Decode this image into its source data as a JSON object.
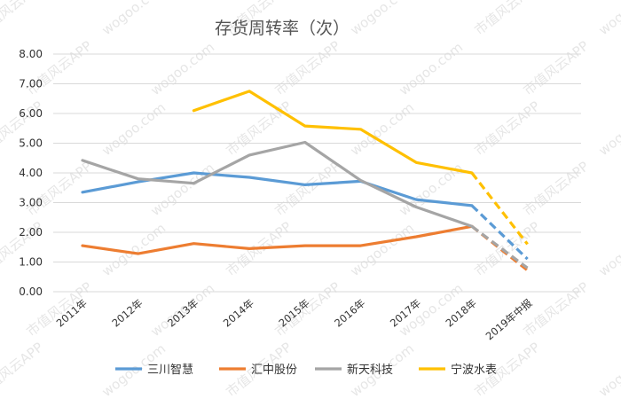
{
  "chart_data": {
    "type": "line",
    "title": "存货周转率（次）",
    "categories": [
      "2011年",
      "2012年",
      "2013年",
      "2014年",
      "2015年",
      "2016年",
      "2017年",
      "2018年",
      "2019年中报"
    ],
    "ylim": [
      0,
      8
    ],
    "yticks": [
      "0.00",
      "1.00",
      "2.00",
      "3.00",
      "4.00",
      "5.00",
      "6.00",
      "7.00",
      "8.00"
    ],
    "grid": true,
    "legend_position": "bottom",
    "forecast_style": "last segment dashed",
    "series": [
      {
        "name": "三川智慧",
        "color": "#5B9BD5",
        "values": [
          3.35,
          3.7,
          4.0,
          3.85,
          3.6,
          3.72,
          3.1,
          2.9,
          1.1
        ]
      },
      {
        "name": "汇中股份",
        "color": "#ED7D31",
        "values": [
          1.55,
          1.28,
          1.62,
          1.45,
          1.55,
          1.55,
          1.85,
          2.2,
          0.72
        ]
      },
      {
        "name": "新天科技",
        "color": "#A5A5A5",
        "values": [
          4.42,
          3.8,
          3.65,
          4.6,
          5.03,
          3.75,
          2.85,
          2.2,
          0.8
        ]
      },
      {
        "name": "宁波水表",
        "color": "#FFC000",
        "values": [
          null,
          null,
          6.1,
          6.75,
          5.58,
          5.47,
          4.35,
          4.0,
          1.6
        ]
      }
    ]
  },
  "watermark": {
    "texts": [
      "市值风云APP",
      "wogoo.com"
    ],
    "color": "#b8b8b8"
  }
}
